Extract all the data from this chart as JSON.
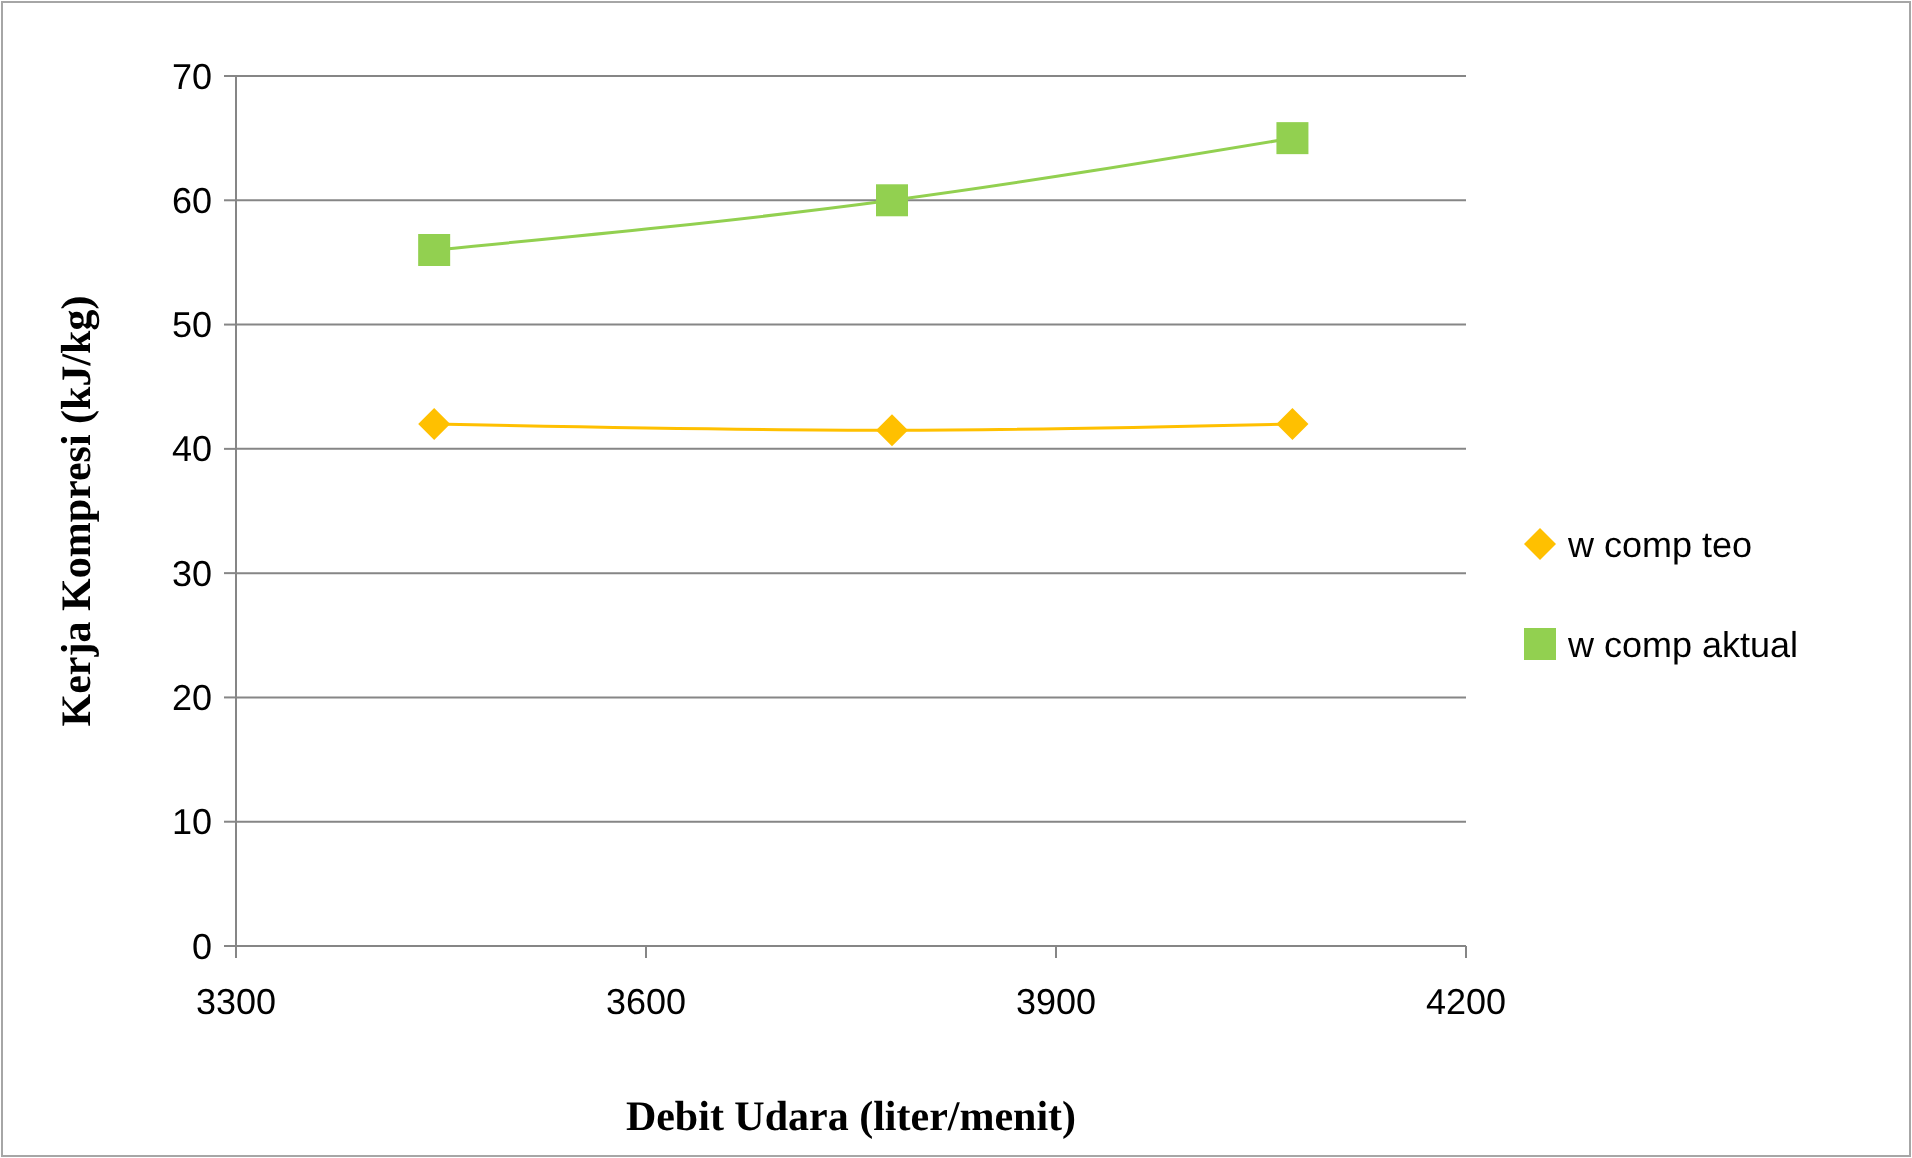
{
  "chart_data": {
    "type": "line",
    "xlabel": "Debit Udara (liter/menit)",
    "ylabel": "Kerja Kompresi (kJ/kg)",
    "x": [
      3445,
      3780,
      4073
    ],
    "series": [
      {
        "name": "w comp teo",
        "color": "#ffc000",
        "values": [
          42,
          41.5,
          42
        ],
        "marker": "diamond"
      },
      {
        "name": "w comp aktual",
        "color": "#92d050",
        "values": [
          56,
          60,
          65
        ],
        "marker": "square"
      }
    ],
    "xlim": [
      3300,
      4200
    ],
    "xticks": [
      3300,
      3600,
      3900,
      4200
    ],
    "ylim": [
      0,
      70
    ],
    "yticks": [
      0,
      10,
      20,
      30,
      40,
      50,
      60,
      70
    ],
    "grid": "y",
    "legend": "right"
  }
}
